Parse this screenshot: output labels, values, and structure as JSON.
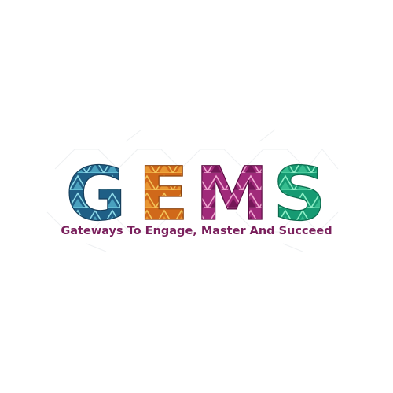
{
  "logo": {
    "letters": [
      {
        "char": "G",
        "color": "#1f5f86",
        "accent": "#8fdcea"
      },
      {
        "char": "E",
        "color": "#d0691a",
        "accent": "#f5c55a"
      },
      {
        "char": "M",
        "color": "#a02a7a",
        "accent": "#f2a9d4"
      },
      {
        "char": "S",
        "color": "#169a72",
        "accent": "#8ff0c8"
      }
    ]
  },
  "tagline": "Gateways To Engage, Master And Succeed",
  "colors": {
    "tagline": "#7a1f5c",
    "background": "#ffffff"
  }
}
